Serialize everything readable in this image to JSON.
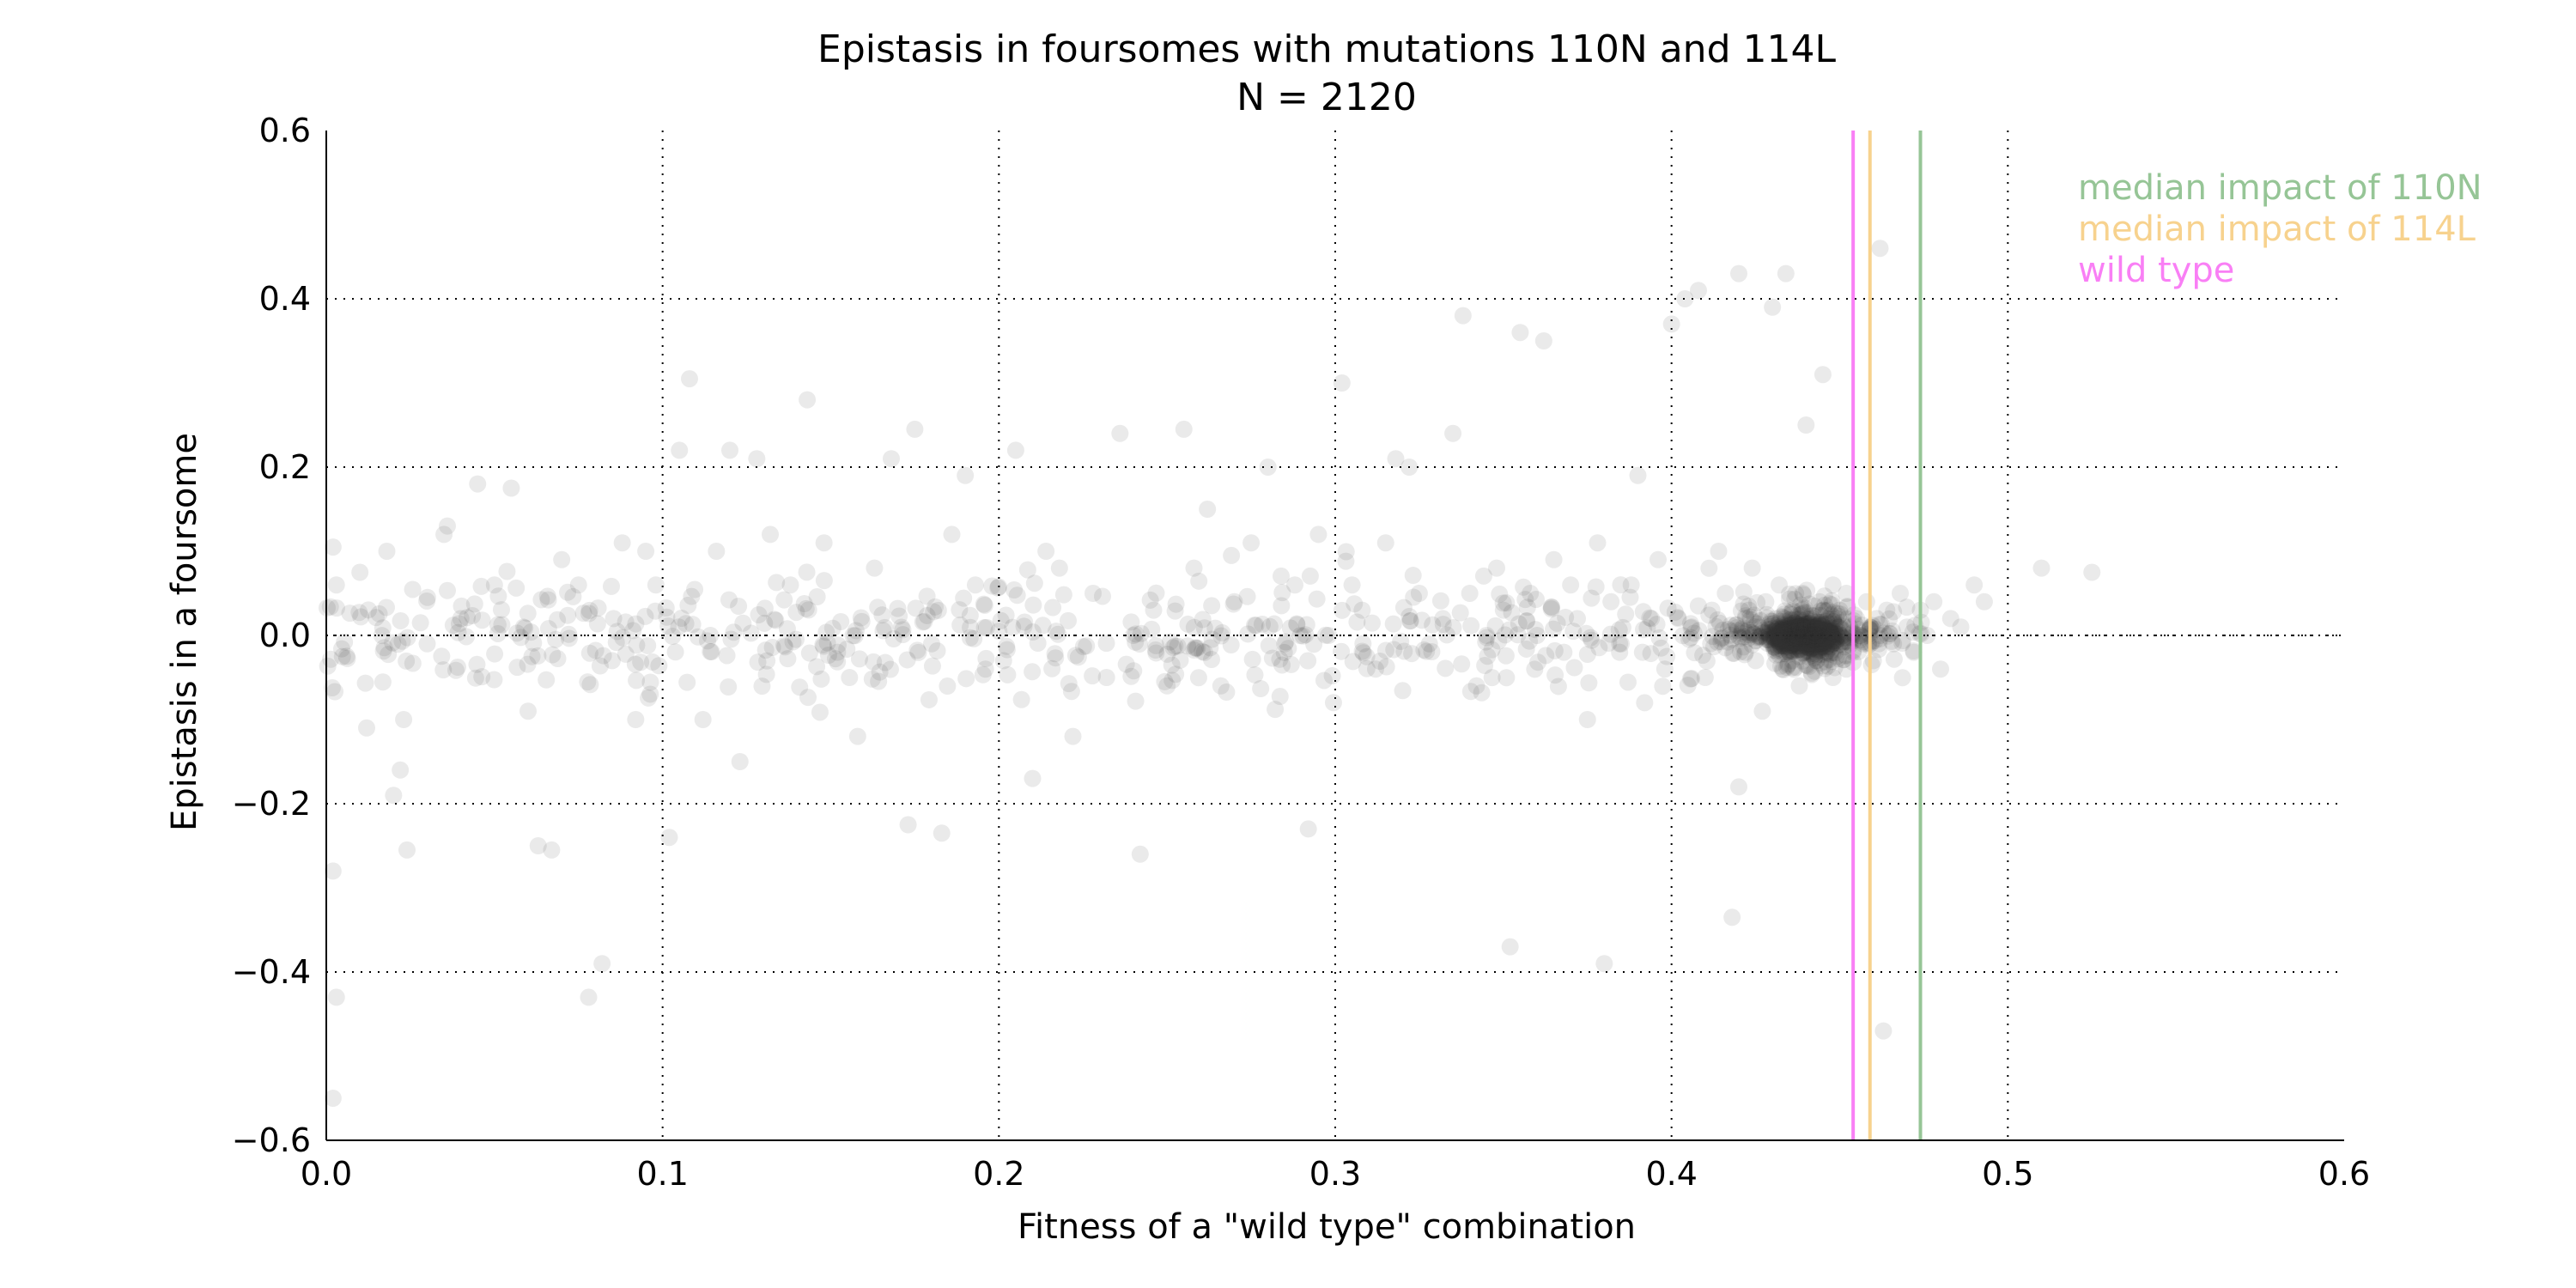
{
  "chart_data": {
    "type": "scatter",
    "title": "Epistasis in foursomes with mutations 110N and 114L",
    "subtitle": "N = 2120",
    "xlabel": "Fitness of a \"wild type\" combination",
    "ylabel": "Epistasis in a foursome",
    "xlim": [
      0.0,
      0.6
    ],
    "ylim": [
      -0.6,
      0.6
    ],
    "x_ticks": [
      0.0,
      0.1,
      0.2,
      0.3,
      0.4,
      0.5,
      0.6
    ],
    "y_ticks": [
      -0.6,
      -0.4,
      -0.2,
      0.0,
      0.2,
      0.4,
      0.6
    ],
    "x_tick_labels": [
      "0.0",
      "0.1",
      "0.2",
      "0.3",
      "0.4",
      "0.5",
      "0.6"
    ],
    "y_tick_labels": [
      "−0.6",
      "−0.4",
      "−0.2",
      "0.0",
      "0.2",
      "0.4",
      "0.6"
    ],
    "grid": true,
    "legend_position": "top-right",
    "point_color": "#333333",
    "vertical_lines": [
      {
        "name": "median impact of 110N",
        "x": 0.474,
        "color": "#96c596"
      },
      {
        "name": "median impact of 114L",
        "x": 0.459,
        "color": "#f7d28e"
      },
      {
        "name": "wild type",
        "x": 0.454,
        "color": "#f97ff5"
      }
    ],
    "points": [
      [
        0.002,
        0.105
      ],
      [
        0.003,
        0.06
      ],
      [
        0.002,
        -0.28
      ],
      [
        0.003,
        -0.43
      ],
      [
        0.002,
        -0.55
      ],
      [
        0.01,
        0.075
      ],
      [
        0.018,
        0.1
      ],
      [
        0.012,
        -0.11
      ],
      [
        0.02,
        -0.19
      ],
      [
        0.022,
        -0.16
      ],
      [
        0.024,
        -0.255
      ],
      [
        0.023,
        -0.1
      ],
      [
        0.028,
        0.015
      ],
      [
        0.03,
        -0.01
      ],
      [
        0.035,
        0.12
      ],
      [
        0.036,
        0.13
      ],
      [
        0.04,
        0.02
      ],
      [
        0.045,
        0.18
      ],
      [
        0.05,
        0.06
      ],
      [
        0.055,
        0.175
      ],
      [
        0.06,
        -0.09
      ],
      [
        0.063,
        -0.25
      ],
      [
        0.067,
        -0.255
      ],
      [
        0.07,
        0.09
      ],
      [
        0.075,
        0.06
      ],
      [
        0.078,
        -0.43
      ],
      [
        0.082,
        -0.39
      ],
      [
        0.085,
        -0.03
      ],
      [
        0.088,
        0.11
      ],
      [
        0.092,
        -0.1
      ],
      [
        0.095,
        0.1
      ],
      [
        0.098,
        0.06
      ],
      [
        0.102,
        -0.24
      ],
      [
        0.105,
        0.22
      ],
      [
        0.108,
        0.305
      ],
      [
        0.112,
        -0.1
      ],
      [
        0.116,
        0.1
      ],
      [
        0.12,
        0.22
      ],
      [
        0.123,
        -0.15
      ],
      [
        0.128,
        0.21
      ],
      [
        0.132,
        0.12
      ],
      [
        0.138,
        0.06
      ],
      [
        0.143,
        0.28
      ],
      [
        0.148,
        0.11
      ],
      [
        0.152,
        -0.02
      ],
      [
        0.158,
        -0.12
      ],
      [
        0.163,
        0.08
      ],
      [
        0.168,
        0.21
      ],
      [
        0.173,
        -0.225
      ],
      [
        0.175,
        0.245
      ],
      [
        0.18,
        -0.01
      ],
      [
        0.183,
        -0.235
      ],
      [
        0.186,
        0.12
      ],
      [
        0.19,
        0.19
      ],
      [
        0.193,
        0.06
      ],
      [
        0.196,
        -0.04
      ],
      [
        0.2,
        0.005
      ],
      [
        0.205,
        0.22
      ],
      [
        0.21,
        -0.17
      ],
      [
        0.214,
        0.1
      ],
      [
        0.218,
        0.08
      ],
      [
        0.222,
        -0.12
      ],
      [
        0.228,
        0.05
      ],
      [
        0.232,
        -0.05
      ],
      [
        0.236,
        0.24
      ],
      [
        0.24,
        0.0
      ],
      [
        0.242,
        -0.26
      ],
      [
        0.246,
        0.03
      ],
      [
        0.25,
        -0.06
      ],
      [
        0.255,
        0.245
      ],
      [
        0.258,
        0.08
      ],
      [
        0.262,
        0.15
      ],
      [
        0.266,
        -0.06
      ],
      [
        0.27,
        0.04
      ],
      [
        0.275,
        0.11
      ],
      [
        0.28,
        0.2
      ],
      [
        0.285,
        -0.01
      ],
      [
        0.288,
        0.06
      ],
      [
        0.292,
        -0.23
      ],
      [
        0.295,
        0.12
      ],
      [
        0.298,
        0.0
      ],
      [
        0.302,
        0.3
      ],
      [
        0.305,
        0.06
      ],
      [
        0.308,
        0.03
      ],
      [
        0.312,
        -0.04
      ],
      [
        0.315,
        0.11
      ],
      [
        0.318,
        0.21
      ],
      [
        0.322,
        0.2
      ],
      [
        0.325,
        0.05
      ],
      [
        0.328,
        -0.01
      ],
      [
        0.332,
        0.02
      ],
      [
        0.335,
        0.24
      ],
      [
        0.338,
        0.38
      ],
      [
        0.34,
        0.05
      ],
      [
        0.342,
        -0.06
      ],
      [
        0.345,
        0.0
      ],
      [
        0.348,
        0.08
      ],
      [
        0.35,
        0.03
      ],
      [
        0.352,
        -0.37
      ],
      [
        0.355,
        0.36
      ],
      [
        0.358,
        0.05
      ],
      [
        0.36,
        0.0
      ],
      [
        0.362,
        0.35
      ],
      [
        0.365,
        0.09
      ],
      [
        0.368,
        -0.02
      ],
      [
        0.37,
        0.06
      ],
      [
        0.372,
        0.02
      ],
      [
        0.375,
        -0.1
      ],
      [
        0.378,
        0.11
      ],
      [
        0.38,
        -0.39
      ],
      [
        0.382,
        0.04
      ],
      [
        0.385,
        -0.01
      ],
      [
        0.388,
        0.06
      ],
      [
        0.39,
        0.19
      ],
      [
        0.392,
        -0.08
      ],
      [
        0.394,
        0.02
      ],
      [
        0.396,
        0.09
      ],
      [
        0.398,
        -0.04
      ],
      [
        0.4,
        0.37
      ],
      [
        0.402,
        0.02
      ],
      [
        0.404,
        0.4
      ],
      [
        0.406,
        0.01
      ],
      [
        0.408,
        0.41
      ],
      [
        0.41,
        -0.05
      ],
      [
        0.412,
        0.03
      ],
      [
        0.414,
        0.1
      ],
      [
        0.416,
        0.05
      ],
      [
        0.418,
        -0.335
      ],
      [
        0.42,
        0.43
      ],
      [
        0.42,
        -0.18
      ],
      [
        0.421,
        0.005
      ],
      [
        0.422,
        -0.02
      ],
      [
        0.423,
        0.03
      ],
      [
        0.424,
        0.08
      ],
      [
        0.425,
        -0.03
      ],
      [
        0.426,
        0.01
      ],
      [
        0.427,
        -0.09
      ],
      [
        0.428,
        0.04
      ],
      [
        0.429,
        0.0
      ],
      [
        0.43,
        0.39
      ],
      [
        0.43,
        -0.01
      ],
      [
        0.431,
        0.02
      ],
      [
        0.432,
        0.06
      ],
      [
        0.433,
        -0.04
      ],
      [
        0.434,
        0.43
      ],
      [
        0.434,
        0.01
      ],
      [
        0.435,
        -0.02
      ],
      [
        0.436,
        0.03
      ],
      [
        0.437,
        0.0
      ],
      [
        0.438,
        -0.06
      ],
      [
        0.439,
        0.05
      ],
      [
        0.44,
        0.01
      ],
      [
        0.44,
        0.25
      ],
      [
        0.441,
        -0.01
      ],
      [
        0.442,
        0.02
      ],
      [
        0.443,
        -0.03
      ],
      [
        0.444,
        0.04
      ],
      [
        0.445,
        0.0
      ],
      [
        0.445,
        0.31
      ],
      [
        0.446,
        -0.02
      ],
      [
        0.447,
        0.01
      ],
      [
        0.448,
        0.06
      ],
      [
        0.448,
        -0.05
      ],
      [
        0.449,
        0.02
      ],
      [
        0.45,
        -0.01
      ],
      [
        0.45,
        0.03
      ],
      [
        0.451,
        0.0
      ],
      [
        0.452,
        -0.04
      ],
      [
        0.452,
        0.05
      ],
      [
        0.453,
        0.01
      ],
      [
        0.454,
        -0.02
      ],
      [
        0.455,
        0.02
      ],
      [
        0.456,
        0.0
      ],
      [
        0.457,
        -0.01
      ],
      [
        0.458,
        0.04
      ],
      [
        0.459,
        0.01
      ],
      [
        0.46,
        -0.03
      ],
      [
        0.461,
        0.02
      ],
      [
        0.462,
        0.46
      ],
      [
        0.462,
        0.0
      ],
      [
        0.463,
        -0.47
      ],
      [
        0.464,
        0.03
      ],
      [
        0.466,
        -0.01
      ],
      [
        0.468,
        0.05
      ],
      [
        0.47,
        0.01
      ],
      [
        0.472,
        -0.02
      ],
      [
        0.474,
        0.03
      ],
      [
        0.476,
        0.0
      ],
      [
        0.478,
        0.04
      ],
      [
        0.48,
        -0.04
      ],
      [
        0.483,
        0.02
      ],
      [
        0.486,
        0.01
      ],
      [
        0.49,
        0.06
      ],
      [
        0.493,
        0.04
      ],
      [
        0.51,
        0.08
      ],
      [
        0.525,
        0.075
      ]
    ]
  }
}
